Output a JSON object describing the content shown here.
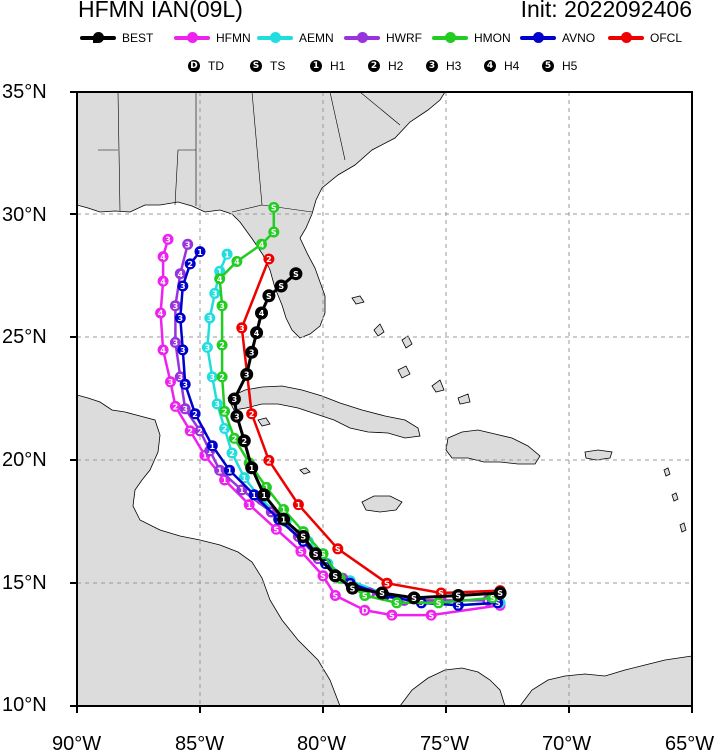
{
  "title": {
    "storm": "HFMN IAN(09L)",
    "init": "Init: 2022092406"
  },
  "models": [
    {
      "name": "BEST",
      "color": "#000000"
    },
    {
      "name": "HFMN",
      "color": "#ee22ee"
    },
    {
      "name": "AEMN",
      "color": "#22dddd"
    },
    {
      "name": "HWRF",
      "color": "#9933dd"
    },
    {
      "name": "HMON",
      "color": "#22cc22"
    },
    {
      "name": "AVNO",
      "color": "#0000cc"
    },
    {
      "name": "OFCL",
      "color": "#ee0000"
    }
  ],
  "categories": [
    {
      "symbol": "D",
      "label": "TD"
    },
    {
      "symbol": "S",
      "label": "TS"
    },
    {
      "symbol": "1",
      "label": "H1"
    },
    {
      "symbol": "2",
      "label": "H2"
    },
    {
      "symbol": "3",
      "label": "H3"
    },
    {
      "symbol": "4",
      "label": "H4"
    },
    {
      "symbol": "5",
      "label": "H5"
    }
  ],
  "axes": {
    "lat_labels": [
      "35°N",
      "30°N",
      "25°N",
      "20°N",
      "15°N",
      "10°N"
    ],
    "lon_labels": [
      "90°W",
      "85°W",
      "80°W",
      "75°W",
      "70°W",
      "65°W"
    ],
    "lat_range": [
      10,
      35
    ],
    "lon_range": [
      -90,
      -65
    ],
    "grid": true,
    "grid_interval_deg": 5
  },
  "tracks": {
    "BEST": [
      {
        "lat": 14.6,
        "lon": -72.8,
        "cat": "S"
      },
      {
        "lat": 14.5,
        "lon": -74.5,
        "cat": "S"
      },
      {
        "lat": 14.4,
        "lon": -76.3,
        "cat": "S"
      },
      {
        "lat": 14.6,
        "lon": -77.6,
        "cat": "S"
      },
      {
        "lat": 14.8,
        "lon": -78.8,
        "cat": "S"
      },
      {
        "lat": 15.3,
        "lon": -79.5,
        "cat": "S"
      },
      {
        "lat": 16.2,
        "lon": -80.3,
        "cat": "S"
      },
      {
        "lat": 16.9,
        "lon": -80.8,
        "cat": "S"
      },
      {
        "lat": 17.6,
        "lon": -81.6,
        "cat": "1"
      },
      {
        "lat": 18.6,
        "lon": -82.4,
        "cat": "1"
      },
      {
        "lat": 19.7,
        "lon": -82.9,
        "cat": "1"
      },
      {
        "lat": 20.8,
        "lon": -83.2,
        "cat": "2"
      },
      {
        "lat": 21.8,
        "lon": -83.5,
        "cat": "3"
      },
      {
        "lat": 22.5,
        "lon": -83.6,
        "cat": "3"
      },
      {
        "lat": 23.5,
        "lon": -83.1,
        "cat": "3"
      },
      {
        "lat": 24.4,
        "lon": -82.9,
        "cat": "3"
      },
      {
        "lat": 25.2,
        "lon": -82.7,
        "cat": "4"
      },
      {
        "lat": 26.0,
        "lon": -82.5,
        "cat": "4"
      },
      {
        "lat": 26.7,
        "lon": -82.2,
        "cat": "S"
      },
      {
        "lat": 27.1,
        "lon": -81.7,
        "cat": "S"
      },
      {
        "lat": 27.6,
        "lon": -81.1,
        "cat": "S"
      }
    ],
    "HFMN": [
      {
        "lat": 14.1,
        "lon": -72.8,
        "cat": "D"
      },
      {
        "lat": 13.7,
        "lon": -75.6,
        "cat": "S"
      },
      {
        "lat": 13.7,
        "lon": -77.2,
        "cat": "S"
      },
      {
        "lat": 13.9,
        "lon": -78.3,
        "cat": "D"
      },
      {
        "lat": 14.5,
        "lon": -79.5,
        "cat": "S"
      },
      {
        "lat": 15.3,
        "lon": -80.0,
        "cat": "S"
      },
      {
        "lat": 16.3,
        "lon": -80.9,
        "cat": "S"
      },
      {
        "lat": 17.2,
        "lon": -81.9,
        "cat": "S"
      },
      {
        "lat": 18.2,
        "lon": -83.0,
        "cat": "1"
      },
      {
        "lat": 19.2,
        "lon": -84.0,
        "cat": "1"
      },
      {
        "lat": 20.2,
        "lon": -84.8,
        "cat": "1"
      },
      {
        "lat": 21.2,
        "lon": -85.4,
        "cat": "2"
      },
      {
        "lat": 22.2,
        "lon": -86.0,
        "cat": "2"
      },
      {
        "lat": 23.2,
        "lon": -86.2,
        "cat": "3"
      },
      {
        "lat": 24.5,
        "lon": -86.5,
        "cat": "4"
      },
      {
        "lat": 26.0,
        "lon": -86.6,
        "cat": "4"
      },
      {
        "lat": 27.3,
        "lon": -86.5,
        "cat": "4"
      },
      {
        "lat": 28.3,
        "lon": -86.5,
        "cat": "4"
      },
      {
        "lat": 29.0,
        "lon": -86.3,
        "cat": "3"
      }
    ],
    "AEMN": [
      {
        "lat": 14.2,
        "lon": -72.8,
        "cat": "D"
      },
      {
        "lat": 14.1,
        "lon": -74.5,
        "cat": "S"
      },
      {
        "lat": 14.2,
        "lon": -76.0,
        "cat": "S"
      },
      {
        "lat": 14.6,
        "lon": -77.6,
        "cat": "S"
      },
      {
        "lat": 15.1,
        "lon": -78.9,
        "cat": "S"
      },
      {
        "lat": 15.8,
        "lon": -79.8,
        "cat": "S"
      },
      {
        "lat": 16.7,
        "lon": -80.6,
        "cat": "S"
      },
      {
        "lat": 17.5,
        "lon": -81.5,
        "cat": "1"
      },
      {
        "lat": 18.4,
        "lon": -82.5,
        "cat": "1"
      },
      {
        "lat": 19.3,
        "lon": -83.2,
        "cat": "1"
      },
      {
        "lat": 20.3,
        "lon": -83.7,
        "cat": "2"
      },
      {
        "lat": 21.3,
        "lon": -84.0,
        "cat": "2"
      },
      {
        "lat": 22.3,
        "lon": -84.3,
        "cat": "3"
      },
      {
        "lat": 23.4,
        "lon": -84.5,
        "cat": "3"
      },
      {
        "lat": 24.6,
        "lon": -84.7,
        "cat": "3"
      },
      {
        "lat": 25.8,
        "lon": -84.6,
        "cat": "3"
      },
      {
        "lat": 26.8,
        "lon": -84.4,
        "cat": "3"
      },
      {
        "lat": 27.7,
        "lon": -84.2,
        "cat": "1"
      },
      {
        "lat": 28.4,
        "lon": -83.9,
        "cat": "1"
      }
    ],
    "HWRF": [
      {
        "lat": 14.3,
        "lon": -73.3,
        "cat": "D"
      },
      {
        "lat": 14.3,
        "lon": -75.2,
        "cat": "S"
      },
      {
        "lat": 14.3,
        "lon": -76.7,
        "cat": "S"
      },
      {
        "lat": 14.6,
        "lon": -78.1,
        "cat": "S"
      },
      {
        "lat": 15.2,
        "lon": -79.2,
        "cat": "S"
      },
      {
        "lat": 16.0,
        "lon": -80.2,
        "cat": "S"
      },
      {
        "lat": 16.9,
        "lon": -81.0,
        "cat": "S"
      },
      {
        "lat": 17.9,
        "lon": -82.1,
        "cat": "1"
      },
      {
        "lat": 18.8,
        "lon": -83.3,
        "cat": "1"
      },
      {
        "lat": 19.6,
        "lon": -84.2,
        "cat": "1"
      },
      {
        "lat": 20.4,
        "lon": -84.6,
        "cat": "1"
      },
      {
        "lat": 21.2,
        "lon": -85.0,
        "cat": "2"
      },
      {
        "lat": 22.1,
        "lon": -85.6,
        "cat": "3"
      },
      {
        "lat": 23.4,
        "lon": -85.8,
        "cat": "3"
      },
      {
        "lat": 24.8,
        "lon": -86.0,
        "cat": "3"
      },
      {
        "lat": 26.3,
        "lon": -86.0,
        "cat": "3"
      },
      {
        "lat": 27.6,
        "lon": -85.8,
        "cat": "4"
      },
      {
        "lat": 28.8,
        "lon": -85.5,
        "cat": "3"
      }
    ],
    "HMON": [
      {
        "lat": 14.4,
        "lon": -73.1,
        "cat": "S"
      },
      {
        "lat": 14.2,
        "lon": -75.3,
        "cat": "S"
      },
      {
        "lat": 14.2,
        "lon": -77.0,
        "cat": "S"
      },
      {
        "lat": 14.5,
        "lon": -78.3,
        "cat": "S"
      },
      {
        "lat": 15.2,
        "lon": -79.3,
        "cat": "S"
      },
      {
        "lat": 16.2,
        "lon": -80.0,
        "cat": "S"
      },
      {
        "lat": 17.1,
        "lon": -80.8,
        "cat": "S"
      },
      {
        "lat": 18.0,
        "lon": -81.6,
        "cat": "1"
      },
      {
        "lat": 18.9,
        "lon": -82.3,
        "cat": "1"
      },
      {
        "lat": 19.9,
        "lon": -83.0,
        "cat": "1"
      },
      {
        "lat": 20.9,
        "lon": -83.6,
        "cat": "2"
      },
      {
        "lat": 22.0,
        "lon": -84.0,
        "cat": "2"
      },
      {
        "lat": 23.4,
        "lon": -84.1,
        "cat": "2"
      },
      {
        "lat": 24.7,
        "lon": -84.1,
        "cat": "2"
      },
      {
        "lat": 26.3,
        "lon": -84.1,
        "cat": "3"
      },
      {
        "lat": 27.4,
        "lon": -84.2,
        "cat": "4"
      },
      {
        "lat": 28.1,
        "lon": -83.5,
        "cat": "4"
      },
      {
        "lat": 28.8,
        "lon": -82.5,
        "cat": "4"
      },
      {
        "lat": 29.3,
        "lon": -82.0,
        "cat": "S"
      },
      {
        "lat": 30.3,
        "lon": -82.0,
        "cat": "S"
      }
    ],
    "AVNO": [
      {
        "lat": 14.2,
        "lon": -72.9,
        "cat": "S"
      },
      {
        "lat": 14.1,
        "lon": -74.5,
        "cat": "S"
      },
      {
        "lat": 14.2,
        "lon": -76.0,
        "cat": "S"
      },
      {
        "lat": 14.5,
        "lon": -77.5,
        "cat": "S"
      },
      {
        "lat": 15.0,
        "lon": -78.9,
        "cat": "S"
      },
      {
        "lat": 15.8,
        "lon": -79.9,
        "cat": "S"
      },
      {
        "lat": 16.7,
        "lon": -80.8,
        "cat": "S"
      },
      {
        "lat": 17.6,
        "lon": -81.8,
        "cat": "1"
      },
      {
        "lat": 18.6,
        "lon": -82.8,
        "cat": "1"
      },
      {
        "lat": 19.6,
        "lon": -83.8,
        "cat": "1"
      },
      {
        "lat": 20.6,
        "lon": -84.5,
        "cat": "1"
      },
      {
        "lat": 21.9,
        "lon": -85.2,
        "cat": "2"
      },
      {
        "lat": 23.1,
        "lon": -85.6,
        "cat": "3"
      },
      {
        "lat": 24.5,
        "lon": -85.7,
        "cat": "3"
      },
      {
        "lat": 25.8,
        "lon": -85.8,
        "cat": "3"
      },
      {
        "lat": 27.1,
        "lon": -85.7,
        "cat": "3"
      },
      {
        "lat": 28.0,
        "lon": -85.4,
        "cat": "2"
      },
      {
        "lat": 28.5,
        "lon": -85.0,
        "cat": "1"
      }
    ],
    "OFCL": [
      {
        "lat": 14.7,
        "lon": -72.8,
        "cat": "S"
      },
      {
        "lat": 14.6,
        "lon": -75.2,
        "cat": "S"
      },
      {
        "lat": 15.0,
        "lon": -77.4,
        "cat": "S"
      },
      {
        "lat": 16.4,
        "lon": -79.4,
        "cat": "S"
      },
      {
        "lat": 18.2,
        "lon": -81.0,
        "cat": "1"
      },
      {
        "lat": 20.0,
        "lon": -82.2,
        "cat": "2"
      },
      {
        "lat": 21.9,
        "lon": -82.9,
        "cat": "2"
      },
      {
        "lat": 25.4,
        "lon": -83.3,
        "cat": "3"
      },
      {
        "lat": 28.2,
        "lon": -82.2,
        "cat": "2"
      }
    ]
  }
}
